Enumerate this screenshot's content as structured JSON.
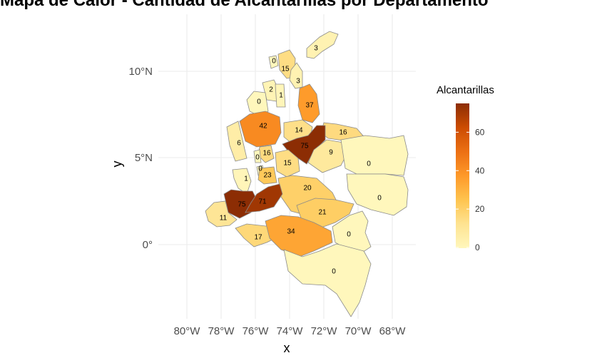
{
  "title": "Mapa de Calor - Cantidad de Alcantarillas por Departamento",
  "chart_data": {
    "type": "choropleth",
    "xlabel": "x",
    "ylabel": "y",
    "x_ticks": [
      "80°W",
      "78°W",
      "76°W",
      "74°W",
      "72°W",
      "70°W",
      "68°W"
    ],
    "y_ticks": [
      "10°N",
      "5°N",
      "0°"
    ],
    "grid": true,
    "legend": {
      "title": "Alcantarillas",
      "position": "right",
      "ticks": [
        "60",
        "40",
        "20",
        "0"
      ],
      "min": 0,
      "max": 75,
      "colors": [
        "#fff7bc",
        "#fee391",
        "#fec44f",
        "#fe9929",
        "#ec7014",
        "#cc4c02",
        "#8c2d04"
      ]
    },
    "regions": [
      {
        "label": "3",
        "value": 3
      },
      {
        "label": "0",
        "value": 0
      },
      {
        "label": "15",
        "value": 15
      },
      {
        "label": "3",
        "value": 3
      },
      {
        "label": "2",
        "value": 2
      },
      {
        "label": "1",
        "value": 1
      },
      {
        "label": "0",
        "value": 0
      },
      {
        "label": "37",
        "value": 37
      },
      {
        "label": "42",
        "value": 42
      },
      {
        "label": "14",
        "value": 14
      },
      {
        "label": "16",
        "value": 16
      },
      {
        "label": "6",
        "value": 6
      },
      {
        "label": "75",
        "value": 75
      },
      {
        "label": "16",
        "value": 16
      },
      {
        "label": "0",
        "value": 0
      },
      {
        "label": "9",
        "value": 9
      },
      {
        "label": "0",
        "value": 0
      },
      {
        "label": "15",
        "value": 15
      },
      {
        "label": "0",
        "value": 0
      },
      {
        "label": "23",
        "value": 23
      },
      {
        "label": "1",
        "value": 1
      },
      {
        "label": "20",
        "value": 20
      },
      {
        "label": "0",
        "value": 0
      },
      {
        "label": "75",
        "value": 75
      },
      {
        "label": "71",
        "value": 71
      },
      {
        "label": "11",
        "value": 11
      },
      {
        "label": "21",
        "value": 21
      },
      {
        "label": "17",
        "value": 17
      },
      {
        "label": "34",
        "value": 34
      },
      {
        "label": "0",
        "value": 0
      },
      {
        "label": "0",
        "value": 0
      }
    ]
  }
}
